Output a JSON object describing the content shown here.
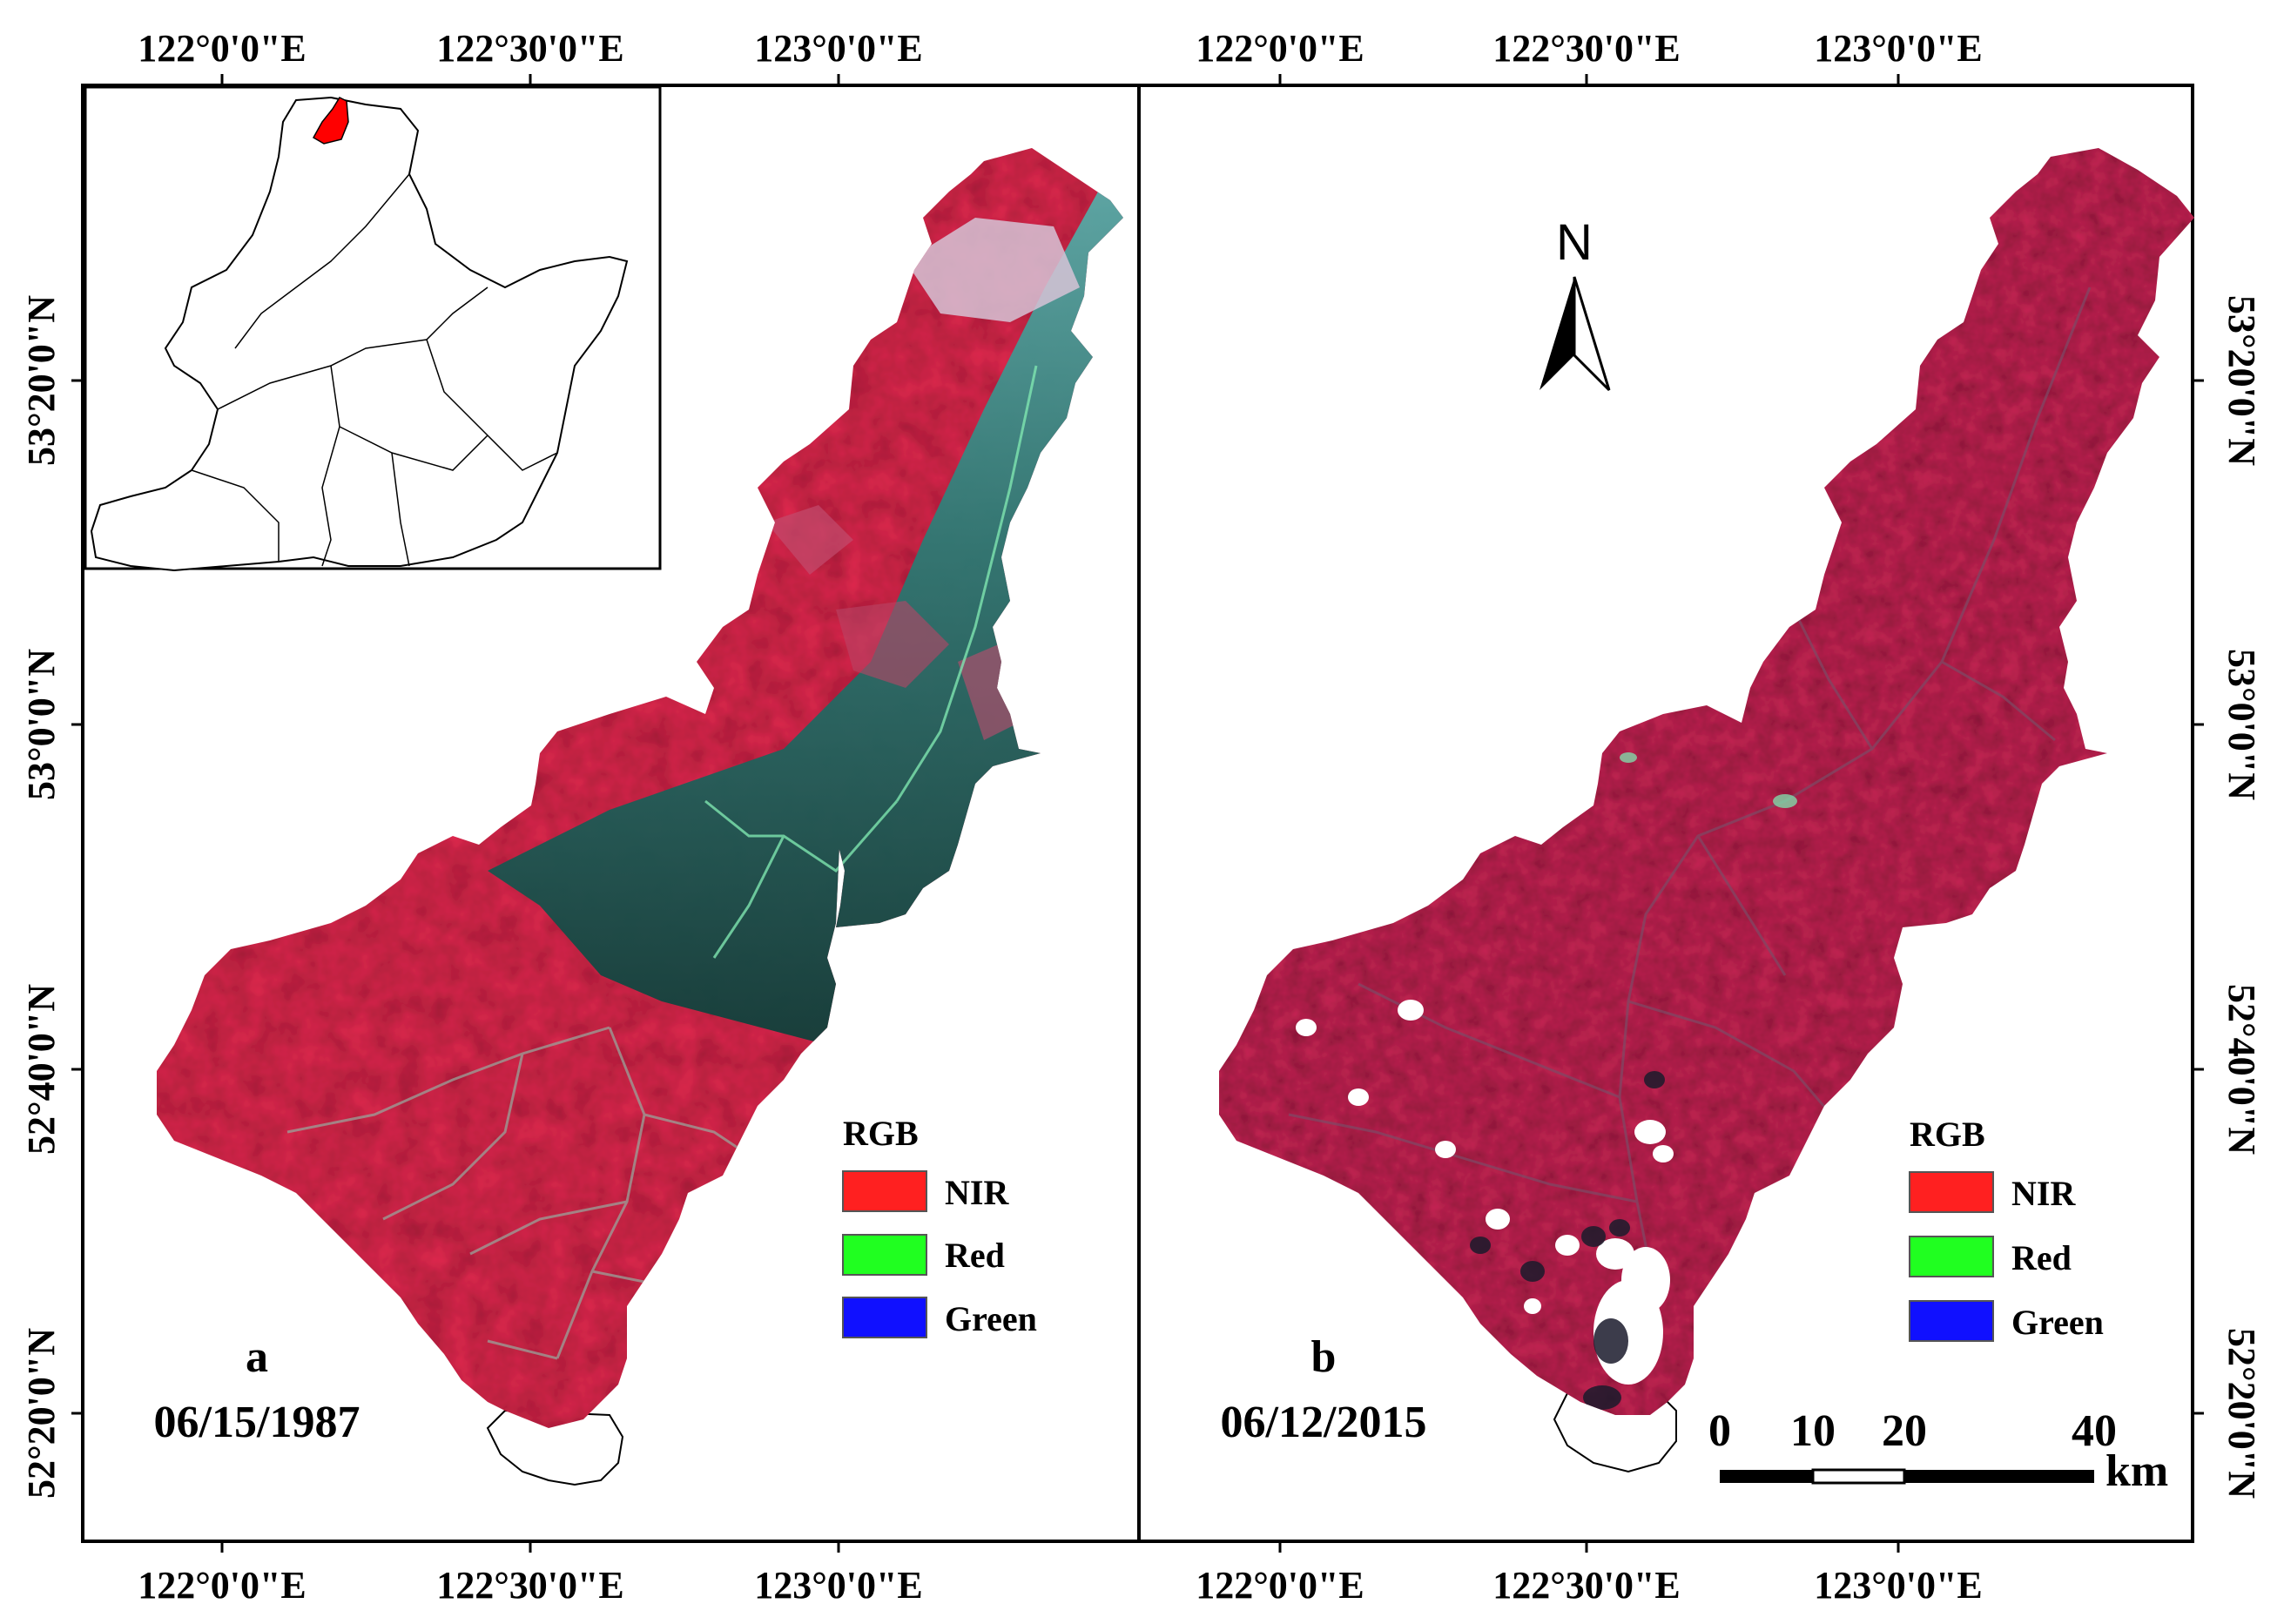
{
  "panels": [
    {
      "id": "a",
      "label": "a",
      "date": "06/15/1987",
      "top_ticks": [
        "122°0'0\"E",
        "122°30'0\"E",
        "123°0'0\"E"
      ],
      "bottom_ticks": [
        "122°0'0\"E",
        "122°30'0\"E",
        "123°0'0\"E"
      ],
      "left_ticks": [
        "53°20'0\"N",
        "53°0'0\"N",
        "52°40'0\"N",
        "52°20'0\"N"
      ],
      "legend": {
        "title": "RGB",
        "items": [
          {
            "label": "NIR",
            "color": "#ff2020"
          },
          {
            "label": "Red",
            "color": "#20ff20"
          },
          {
            "label": "Green",
            "color": "#1010ff"
          }
        ]
      }
    },
    {
      "id": "b",
      "label": "b",
      "date": "06/12/2015",
      "top_ticks": [
        "122°0'0\"E",
        "122°30'0\"E",
        "123°0'0\"E"
      ],
      "bottom_ticks": [
        "122°0'0\"E",
        "122°30'0\"E",
        "123°0'0\"E"
      ],
      "right_ticks": [
        "53°20'0\"N",
        "53°0'0\"N",
        "52°40'0\"N",
        "52°20'0\"N"
      ],
      "legend": {
        "title": "RGB",
        "items": [
          {
            "label": "NIR",
            "color": "#ff2020"
          },
          {
            "label": "Red",
            "color": "#20ff20"
          },
          {
            "label": "Green",
            "color": "#1010ff"
          }
        ]
      }
    }
  ],
  "north_arrow": {
    "label": "N"
  },
  "scale_bar": {
    "ticks": [
      "0",
      "10",
      "20",
      "40"
    ],
    "unit": "km"
  },
  "colors": {
    "nir_red": "#e0284e",
    "forest_teal": "#2a6f6a",
    "dark_teal": "#144a44",
    "cloud": "#ffffff",
    "inset_highlight": "#ff0000"
  }
}
